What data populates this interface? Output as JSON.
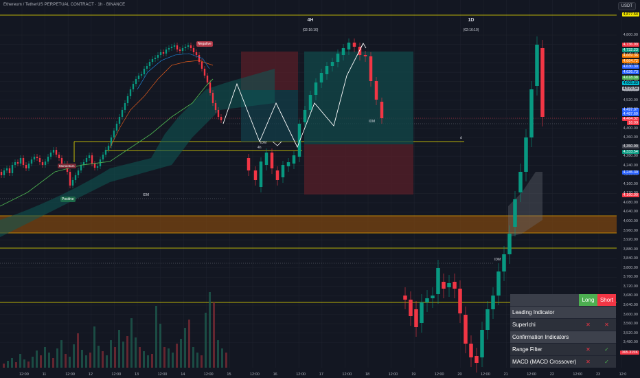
{
  "header": {
    "title": "Ethereum / TetherUS PERPETUAL CONTRACT · 1h · BINANCE",
    "currency": "USDT"
  },
  "timeframes": [
    {
      "label": "4H",
      "timer": "(02:16:10)"
    },
    {
      "label": "1D",
      "timer": "(02:16:10)"
    }
  ],
  "price_axis": [
    "4,800.00",
    "4,760.00",
    "4,720.00",
    "4,680.00",
    "4,640.00",
    "4,600.00",
    "4,560.00",
    "4,520.00",
    "4,480.00",
    "4,440.00",
    "4,400.00",
    "4,360.00",
    "4,320.00",
    "4,280.00",
    "4,240.00",
    "4,200.00",
    "4,160.00",
    "4,120.00",
    "4,080.00",
    "4,040.00",
    "4,000.00",
    "3,960.00",
    "3,920.00",
    "3,880.00",
    "3,840.00",
    "3,800.00",
    "3,760.00",
    "3,720.00",
    "3,680.00",
    "3,640.00",
    "3,600.00",
    "3,560.00",
    "3,520.00",
    "3,480.00"
  ],
  "price_tags": [
    {
      "text": "4,877.54",
      "color": "#f2e600",
      "fg": "#000"
    },
    {
      "text": "4,736.99",
      "color": "#f23645",
      "fg": "#fff"
    },
    {
      "text": "4,732.23",
      "color": "#089981",
      "fg": "#fff"
    },
    {
      "text": "4,669.36",
      "color": "#f57c00",
      "fg": "#fff"
    },
    {
      "text": "4,664.72",
      "color": "#f57c00",
      "fg": "#fff"
    },
    {
      "text": "4,630.30",
      "color": "#2962ff",
      "fg": "#fff"
    },
    {
      "text": "4,626.73",
      "color": "#2962ff",
      "fg": "#fff"
    },
    {
      "text": "4,618.38",
      "color": "#4caf50",
      "fg": "#fff"
    },
    {
      "text": "4,605.83",
      "color": "#00bcd4",
      "fg": "#000"
    },
    {
      "text": "4,579.54",
      "color": "#b2b5be",
      "fg": "#000"
    },
    {
      "text": "4,497.07",
      "color": "#2962ff",
      "fg": "#fff"
    },
    {
      "text": "4,487.60",
      "color": "#2962ff",
      "fg": "#fff"
    },
    {
      "text": "4,464.32",
      "color": "#f23645",
      "fg": "#fff"
    },
    {
      "text": "16:09",
      "color": "#f23645",
      "fg": "#fff"
    },
    {
      "text": "4,350.90",
      "color": "#434651",
      "fg": "#fff"
    },
    {
      "text": "4,333.54",
      "color": "#089981",
      "fg": "#fff"
    },
    {
      "text": "4,245.39",
      "color": "#2962ff",
      "fg": "#fff"
    },
    {
      "text": "4,160.00",
      "color": "#f23645",
      "fg": "#fff"
    },
    {
      "text": "365.315K",
      "color": "#f23645",
      "fg": "#fff"
    }
  ],
  "time_axis": [
    "12:00",
    "11",
    "12:00",
    "12",
    "12:00",
    "13",
    "12:00",
    "14",
    "12:00",
    "15",
    "12:00",
    "16",
    "12:00",
    "17",
    "12:00",
    "18",
    "12:00",
    "19",
    "12:00",
    "20",
    "12:00",
    "21",
    "12:00",
    "22",
    "12:00",
    "23",
    "12:0"
  ],
  "annotations": {
    "negative": "Negative",
    "positive": "Positive",
    "momentum": "Momentum",
    "idm1": "IDM",
    "idm2": "IDM",
    "idm3": "IDM",
    "idm4": "IDM",
    "label_4h": "4h",
    "label_d": "d"
  },
  "panel": {
    "long": "Long",
    "short": "Short",
    "rows": [
      {
        "type": "section",
        "name": "Leading Indicator"
      },
      {
        "type": "item",
        "name": "SuperIchi",
        "long": "✕",
        "short": "✕",
        "long_ok": false,
        "short_ok": false
      },
      {
        "type": "section",
        "name": "Confirmation Indicators"
      },
      {
        "type": "item",
        "name": "Range Filter",
        "long": "✕",
        "short": "✓",
        "long_ok": false,
        "short_ok": true
      },
      {
        "type": "item",
        "name": "MACD (MACD Crossover)",
        "long": "✕",
        "short": "✓",
        "long_ok": false,
        "short_ok": true
      }
    ]
  },
  "colors": {
    "up": "#089981",
    "down": "#f23645",
    "bg": "#131722",
    "level": "#f2e600",
    "zone": "#8a4b0c"
  }
}
